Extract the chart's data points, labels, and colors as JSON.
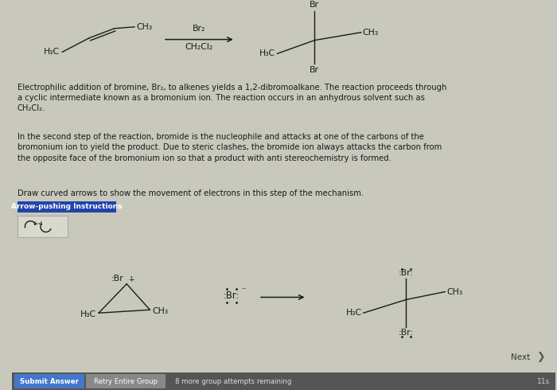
{
  "bg_color": "#ccccc0",
  "para1": "Electrophilic addition of bromine, Br₂, to alkenes yields a 1,2-dibromoalkane. The reaction proceeds through\na cyclic intermediate known as a bromonium ion. The reaction occurs in an anhydrous solvent such as\nCH₂Cl₂.",
  "para2": "In the second step of the reaction, bromide is the nucleophile and attacks at one of the carbons of the\nbromonium ion to yield the product. Due to steric clashes, the bromide ion always attacks the carbon from\nthe opposite face of the bromonium ion so that a product with anti stereochemistry is formed.",
  "para3": "Draw curved arrows to show the movement of electrons in this step of the mechanism.",
  "button_text": "Arrow-pushing Instructions",
  "next_text": "Next",
  "submit_text": "Submit Answer",
  "retry_text": "Retry Entire Group",
  "attempts_text": "8 more group attempts remaining"
}
